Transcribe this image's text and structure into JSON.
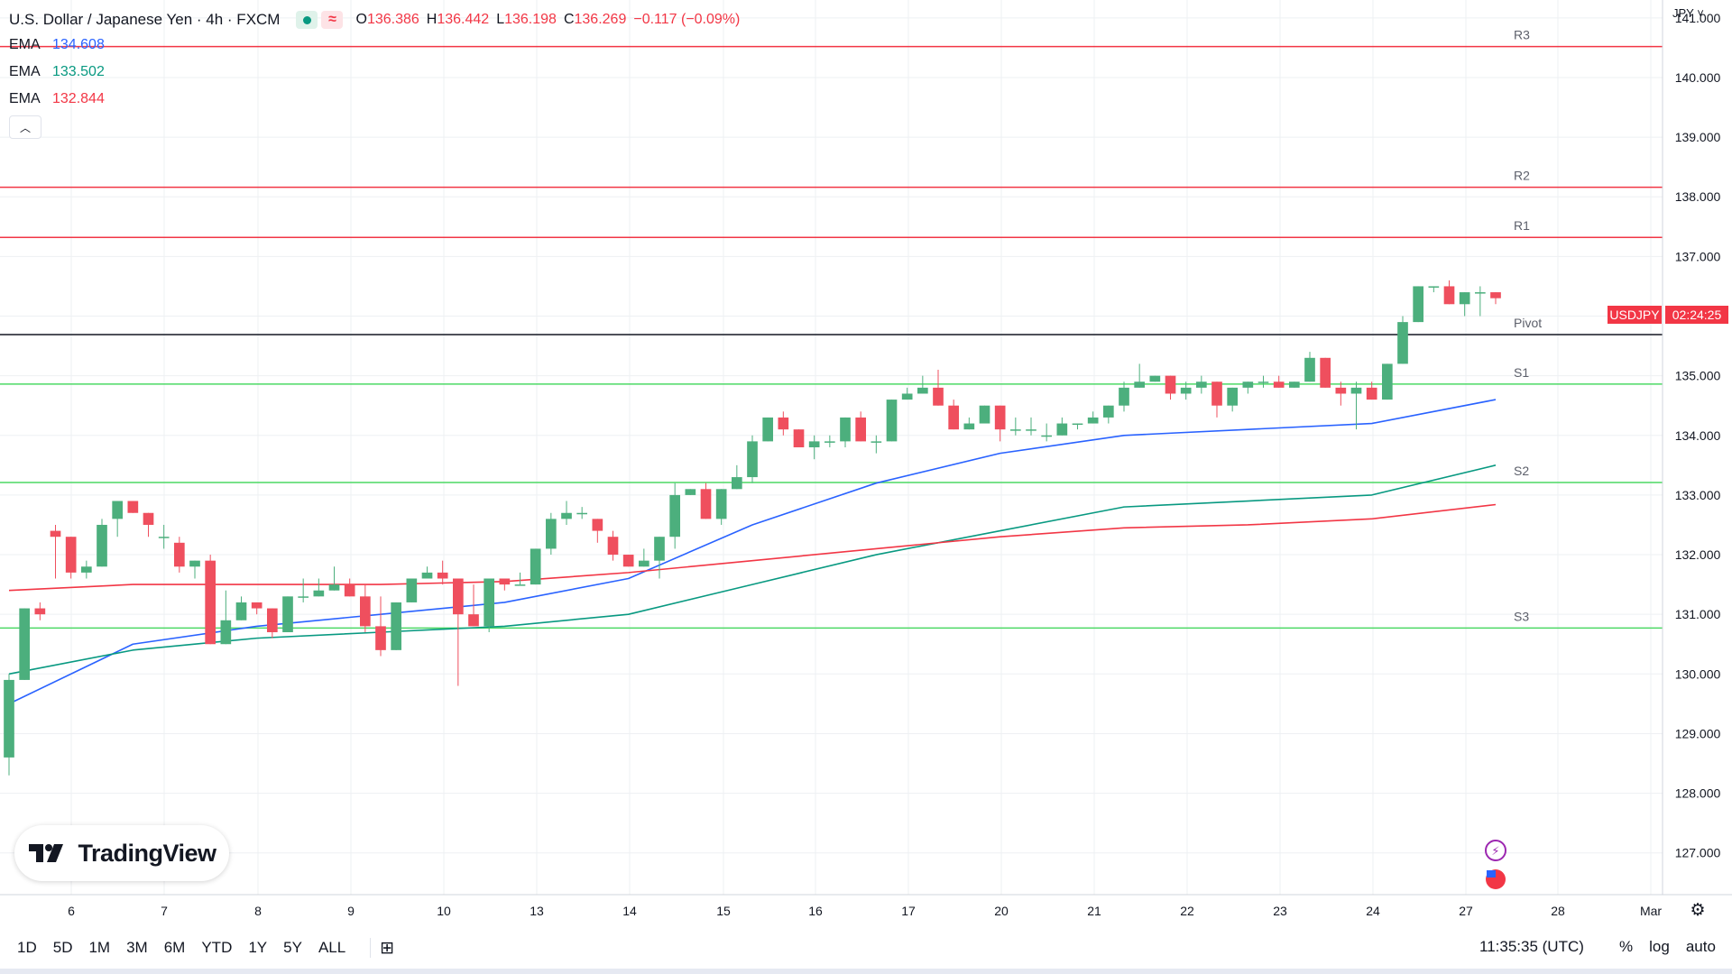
{
  "legend": {
    "title": "U.S. Dollar / Japanese Yen · 4h · FXCM",
    "ohlc": [
      {
        "label": "O",
        "value": "136.386"
      },
      {
        "label": "H",
        "value": "136.442"
      },
      {
        "label": "L",
        "value": "136.198"
      },
      {
        "label": "C",
        "value": "136.269"
      },
      {
        "label": "",
        "value": "−0.117 (−0.09%)"
      }
    ],
    "emas": [
      {
        "name": "EMA",
        "value": "134.608",
        "color": "#2962ff"
      },
      {
        "name": "EMA",
        "value": "133.502",
        "color": "#089981"
      },
      {
        "name": "EMA",
        "value": "132.844",
        "color": "#f23645"
      }
    ]
  },
  "currency": "JPY",
  "price_badge": {
    "symbol": "USDJPY",
    "countdown": "02:24:25",
    "color": "#f23645"
  },
  "logo_text": "TradingView",
  "bottom_bar": {
    "ranges": [
      "1D",
      "5D",
      "1M",
      "3M",
      "6M",
      "YTD",
      "1Y",
      "5Y",
      "ALL"
    ],
    "time": "11:35:35 (UTC)",
    "options": [
      "%",
      "log",
      "auto"
    ]
  },
  "colors": {
    "up": "#4caf7d",
    "down": "#ef4f5e",
    "grid": "#eef0f3",
    "resistance": "#f23645",
    "support": "#4cd964",
    "pivot": "#131722"
  },
  "chart_data": {
    "type": "candlestick",
    "title": "U.S. Dollar / Japanese Yen · 4h · FXCM",
    "y_range": [
      126.3,
      141.3
    ],
    "y_ticks": [
      "141.000",
      "140.000",
      "139.000",
      "138.000",
      "137.000",
      "136.000",
      "135.000",
      "134.000",
      "133.000",
      "132.000",
      "131.000",
      "130.000",
      "129.000",
      "128.000",
      "127.000"
    ],
    "x_ticks": [
      "6",
      "7",
      "8",
      "9",
      "10",
      "13",
      "14",
      "15",
      "16",
      "17",
      "20",
      "21",
      "22",
      "23",
      "24",
      "27",
      "28",
      "Mar"
    ],
    "levels": [
      {
        "name": "R3",
        "value": 140.52,
        "kind": "resistance"
      },
      {
        "name": "R2",
        "value": 138.16,
        "kind": "resistance"
      },
      {
        "name": "R1",
        "value": 137.32,
        "kind": "resistance"
      },
      {
        "name": "Pivot",
        "value": 135.69,
        "kind": "pivot"
      },
      {
        "name": "S1",
        "value": 134.86,
        "kind": "support"
      },
      {
        "name": "S2",
        "value": 133.21,
        "kind": "support"
      },
      {
        "name": "S3",
        "value": 130.77,
        "kind": "support"
      }
    ],
    "candles": [
      [
        128.6,
        130.0,
        128.3,
        129.9
      ],
      [
        129.9,
        131.1,
        129.9,
        131.1
      ],
      [
        131.1,
        131.2,
        130.9,
        131.0
      ],
      [
        132.4,
        132.5,
        131.6,
        132.3
      ],
      [
        132.3,
        132.3,
        131.6,
        131.7
      ],
      [
        131.7,
        131.9,
        131.6,
        131.8
      ],
      [
        131.8,
        132.6,
        131.8,
        132.5
      ],
      [
        132.6,
        132.9,
        132.3,
        132.9
      ],
      [
        132.9,
        132.9,
        132.7,
        132.7
      ],
      [
        132.7,
        132.7,
        132.3,
        132.5
      ],
      [
        132.3,
        132.5,
        132.1,
        132.3
      ],
      [
        132.2,
        132.3,
        131.7,
        131.8
      ],
      [
        131.8,
        131.9,
        131.6,
        131.9
      ],
      [
        131.9,
        132.0,
        130.5,
        130.5
      ],
      [
        130.5,
        131.4,
        130.5,
        130.9
      ],
      [
        130.9,
        131.3,
        130.9,
        131.2
      ],
      [
        131.2,
        131.2,
        131.0,
        131.1
      ],
      [
        131.1,
        131.1,
        130.6,
        130.7
      ],
      [
        130.7,
        131.3,
        130.7,
        131.3
      ],
      [
        131.3,
        131.6,
        131.2,
        131.3
      ],
      [
        131.3,
        131.6,
        131.3,
        131.4
      ],
      [
        131.4,
        131.8,
        131.4,
        131.5
      ],
      [
        131.5,
        131.6,
        131.3,
        131.3
      ],
      [
        131.3,
        131.5,
        130.7,
        130.8
      ],
      [
        130.8,
        131.3,
        130.3,
        130.4
      ],
      [
        130.4,
        131.2,
        130.4,
        131.2
      ],
      [
        131.2,
        131.6,
        131.2,
        131.6
      ],
      [
        131.6,
        131.8,
        131.6,
        131.7
      ],
      [
        131.7,
        131.9,
        131.5,
        131.6
      ],
      [
        131.6,
        131.6,
        129.8,
        131.0
      ],
      [
        131.0,
        131.5,
        130.8,
        130.8
      ],
      [
        130.8,
        131.6,
        130.7,
        131.6
      ],
      [
        131.6,
        131.6,
        131.4,
        131.5
      ],
      [
        131.5,
        131.7,
        131.5,
        131.5
      ],
      [
        131.5,
        132.1,
        131.5,
        132.1
      ],
      [
        132.1,
        132.7,
        132.0,
        132.6
      ],
      [
        132.6,
        132.9,
        132.5,
        132.7
      ],
      [
        132.7,
        132.8,
        132.6,
        132.7
      ],
      [
        132.6,
        132.6,
        132.2,
        132.4
      ],
      [
        132.3,
        132.4,
        131.9,
        132.0
      ],
      [
        132.0,
        132.0,
        131.8,
        131.8
      ],
      [
        131.8,
        132.1,
        131.8,
        131.9
      ],
      [
        131.9,
        132.3,
        131.6,
        132.3
      ],
      [
        132.3,
        133.2,
        132.1,
        133.0
      ],
      [
        133.0,
        133.1,
        133.0,
        133.1
      ],
      [
        133.1,
        133.2,
        132.6,
        132.6
      ],
      [
        132.6,
        133.1,
        132.5,
        133.1
      ],
      [
        133.1,
        133.5,
        133.1,
        133.3
      ],
      [
        133.3,
        134.0,
        133.2,
        133.9
      ],
      [
        133.9,
        134.3,
        133.9,
        134.3
      ],
      [
        134.3,
        134.4,
        134.0,
        134.1
      ],
      [
        134.1,
        134.1,
        133.8,
        133.8
      ],
      [
        133.8,
        134.0,
        133.6,
        133.9
      ],
      [
        133.9,
        134.0,
        133.8,
        133.9
      ],
      [
        133.9,
        134.3,
        133.8,
        134.3
      ],
      [
        134.3,
        134.4,
        133.9,
        133.9
      ],
      [
        133.9,
        134.0,
        133.7,
        133.9
      ],
      [
        133.9,
        134.6,
        133.9,
        134.6
      ],
      [
        134.6,
        134.8,
        134.6,
        134.7
      ],
      [
        134.7,
        135.0,
        134.7,
        134.8
      ],
      [
        134.8,
        135.1,
        134.5,
        134.5
      ],
      [
        134.5,
        134.6,
        134.1,
        134.1
      ],
      [
        134.1,
        134.3,
        134.1,
        134.2
      ],
      [
        134.2,
        134.5,
        134.2,
        134.5
      ],
      [
        134.5,
        134.5,
        133.9,
        134.1
      ],
      [
        134.1,
        134.3,
        134.0,
        134.1
      ],
      [
        134.1,
        134.3,
        134.0,
        134.1
      ],
      [
        134.0,
        134.2,
        133.9,
        134.0
      ],
      [
        134.0,
        134.3,
        134.0,
        134.2
      ],
      [
        134.2,
        134.2,
        134.1,
        134.2
      ],
      [
        134.2,
        134.4,
        134.2,
        134.3
      ],
      [
        134.3,
        134.5,
        134.2,
        134.5
      ],
      [
        134.5,
        134.9,
        134.4,
        134.8
      ],
      [
        134.8,
        135.2,
        134.8,
        134.9
      ],
      [
        134.9,
        135.0,
        134.9,
        135.0
      ],
      [
        135.0,
        135.0,
        134.6,
        134.7
      ],
      [
        134.7,
        134.9,
        134.6,
        134.8
      ],
      [
        134.8,
        135.0,
        134.7,
        134.9
      ],
      [
        134.9,
        134.9,
        134.3,
        134.5
      ],
      [
        134.5,
        134.8,
        134.4,
        134.8
      ],
      [
        134.8,
        134.9,
        134.7,
        134.9
      ],
      [
        134.9,
        135.0,
        134.8,
        134.9
      ],
      [
        134.9,
        135.0,
        134.8,
        134.8
      ],
      [
        134.8,
        134.9,
        134.8,
        134.9
      ],
      [
        134.9,
        135.4,
        134.9,
        135.3
      ],
      [
        135.3,
        135.3,
        134.8,
        134.8
      ],
      [
        134.8,
        134.9,
        134.5,
        134.7
      ],
      [
        134.7,
        134.9,
        134.1,
        134.8
      ],
      [
        134.8,
        134.9,
        134.6,
        134.6
      ],
      [
        134.6,
        135.2,
        134.6,
        135.2
      ],
      [
        135.2,
        136.0,
        135.2,
        135.9
      ],
      [
        135.9,
        136.5,
        135.9,
        136.5
      ],
      [
        136.5,
        136.5,
        136.4,
        136.5
      ],
      [
        136.5,
        136.6,
        136.2,
        136.2
      ],
      [
        136.2,
        136.4,
        136.0,
        136.4
      ],
      [
        136.4,
        136.5,
        136.0,
        136.4
      ],
      [
        136.4,
        136.4,
        136.2,
        136.3
      ]
    ],
    "series": [
      {
        "name": "EMA",
        "value": "134.608",
        "color": "#2962ff",
        "x": [
          0,
          8,
          16,
          24,
          32,
          40,
          48,
          56,
          64,
          72,
          80,
          88,
          96
        ],
        "y": [
          129.5,
          130.5,
          130.8,
          131.0,
          131.2,
          131.6,
          132.5,
          133.2,
          133.7,
          134.0,
          134.1,
          134.2,
          134.6
        ]
      },
      {
        "name": "EMA",
        "value": "133.502",
        "color": "#089981",
        "x": [
          0,
          8,
          16,
          24,
          32,
          40,
          48,
          56,
          64,
          72,
          80,
          88,
          96
        ],
        "y": [
          130.0,
          130.4,
          130.6,
          130.7,
          130.8,
          131.0,
          131.5,
          132.0,
          132.4,
          132.8,
          132.9,
          133.0,
          133.5
        ]
      },
      {
        "name": "EMA",
        "value": "132.844",
        "color": "#f23645",
        "x": [
          0,
          8,
          16,
          24,
          32,
          40,
          48,
          56,
          64,
          72,
          80,
          88,
          96
        ],
        "y": [
          131.4,
          131.5,
          131.5,
          131.5,
          131.55,
          131.7,
          131.9,
          132.1,
          132.3,
          132.45,
          132.5,
          132.6,
          132.84
        ]
      }
    ]
  }
}
